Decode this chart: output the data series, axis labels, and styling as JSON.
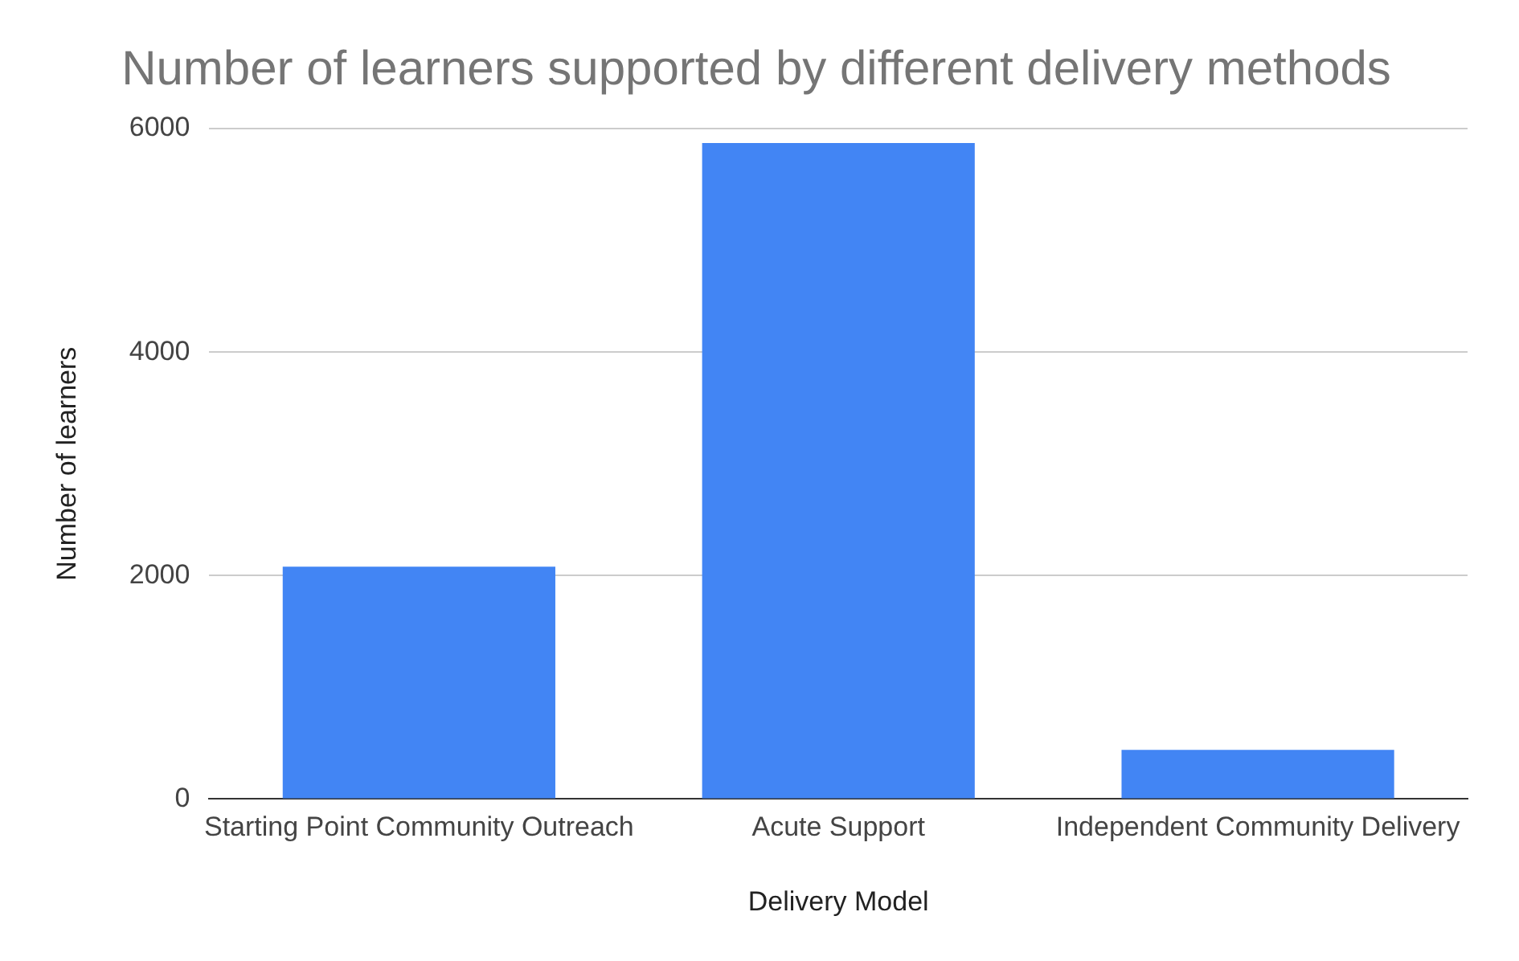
{
  "chart_data": {
    "type": "bar",
    "title": "Number of learners supported by different delivery methods",
    "xlabel": "Delivery Model",
    "ylabel": "Number of learners",
    "categories": [
      "Starting Point Community Outreach",
      "Acute Support",
      "Independent Community Delivery"
    ],
    "values": [
      2080,
      5870,
      440
    ],
    "color": "#4285f4",
    "ylim": [
      0,
      6000
    ],
    "yticks": [
      0,
      2000,
      4000,
      6000
    ],
    "grid": "y",
    "legend": false
  }
}
